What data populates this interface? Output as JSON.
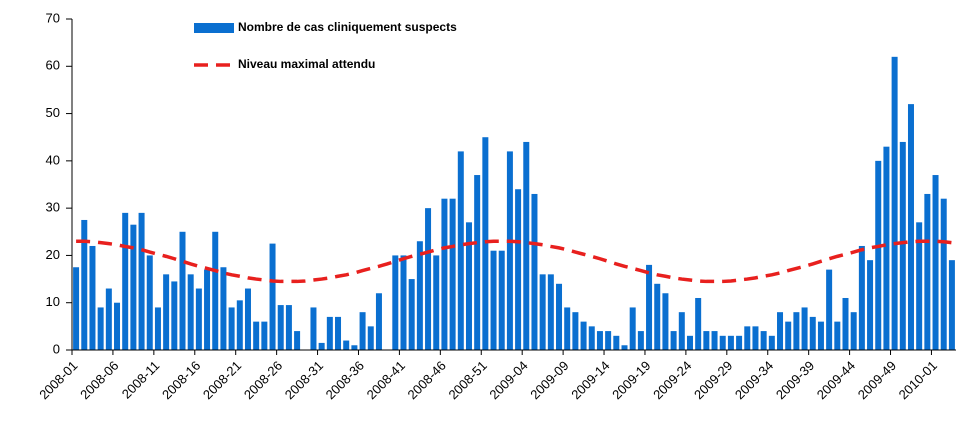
{
  "chart_data": {
    "type": "bar",
    "categories": [
      "2008-01",
      null,
      null,
      null,
      null,
      "2008-06",
      null,
      null,
      null,
      null,
      "2008-11",
      null,
      null,
      null,
      null,
      "2008-16",
      null,
      null,
      null,
      null,
      "2008-21",
      null,
      null,
      null,
      null,
      "2008-26",
      null,
      null,
      null,
      null,
      "2008-31",
      null,
      null,
      null,
      null,
      "2008-36",
      null,
      null,
      null,
      null,
      "2008-41",
      null,
      null,
      null,
      null,
      "2008-46",
      null,
      null,
      null,
      null,
      "2008-51",
      null,
      null,
      null,
      null,
      "2009-04",
      null,
      null,
      null,
      null,
      "2009-09",
      null,
      null,
      null,
      null,
      "2009-14",
      null,
      null,
      null,
      null,
      "2009-19",
      null,
      null,
      null,
      null,
      "2009-24",
      null,
      null,
      null,
      null,
      "2009-29",
      null,
      null,
      null,
      null,
      "2009-34",
      null,
      null,
      null,
      null,
      "2009-39",
      null,
      null,
      null,
      null,
      "2009-44",
      null,
      null,
      null,
      null,
      "2009-49",
      null,
      null,
      null,
      null,
      "2010-01",
      null,
      null
    ],
    "series": [
      {
        "name": "Nombre de cas cliniquement suspects",
        "type": "bar",
        "color": "#0a6fd0",
        "values": [
          17.5,
          27.5,
          22,
          9,
          13,
          10,
          29,
          26.5,
          29,
          20,
          9,
          16,
          14.5,
          25,
          16,
          13,
          17,
          25,
          17.5,
          9,
          10.5,
          13,
          6,
          6,
          22.5,
          9.5,
          9.5,
          4,
          0,
          9,
          1.5,
          7,
          7,
          2,
          1,
          8,
          5,
          12,
          0,
          20,
          20,
          15,
          23,
          30,
          20,
          32,
          32,
          42,
          27,
          37,
          45,
          21,
          21,
          42,
          34,
          44,
          33,
          16,
          16,
          14,
          9,
          8,
          6,
          5,
          4,
          4,
          3,
          1,
          9,
          4,
          18,
          14,
          12,
          4,
          8,
          3,
          11,
          4,
          4,
          3,
          3,
          3,
          5,
          5,
          4,
          3,
          8,
          6,
          8,
          9,
          7,
          6,
          17,
          6,
          11,
          8,
          22,
          19,
          40,
          43,
          62,
          44,
          52,
          27,
          33,
          37,
          32,
          19
        ]
      },
      {
        "name": "Niveau maximal attendu",
        "type": "line",
        "color": "#e8201e",
        "values": [
          23,
          23,
          22.9,
          22.7,
          22.5,
          22.25,
          21.9,
          21.6,
          21.2,
          20.7,
          20.25,
          19.8,
          19.3,
          18.75,
          18.2,
          17.7,
          17.25,
          16.8,
          16.3,
          15.9,
          15.6,
          15.25,
          15,
          14.8,
          14.6,
          14.5,
          14.5,
          14.5,
          14.6,
          14.8,
          15,
          15.25,
          15.6,
          15.9,
          16.3,
          16.8,
          17.25,
          17.7,
          18.2,
          18.75,
          19.3,
          19.8,
          20.25,
          20.7,
          21.2,
          21.6,
          21.9,
          22.25,
          22.5,
          22.7,
          22.9,
          23,
          23,
          23,
          22.9,
          22.7,
          22.5,
          22.25,
          21.9,
          21.6,
          21.2,
          20.7,
          20.25,
          19.8,
          19.3,
          18.75,
          18.2,
          17.7,
          17.25,
          16.8,
          16.3,
          15.9,
          15.6,
          15.25,
          15,
          14.8,
          14.6,
          14.5,
          14.5,
          14.5,
          14.6,
          14.8,
          15,
          15.25,
          15.6,
          15.9,
          16.3,
          16.8,
          17.25,
          17.7,
          18.2,
          18.75,
          19.3,
          19.8,
          20.25,
          20.7,
          21.2,
          21.6,
          21.9,
          22.25,
          22.5,
          22.7,
          22.9,
          23,
          23,
          23,
          22.9,
          22.7
        ]
      }
    ],
    "ylim": [
      0,
      70
    ],
    "yticks": [
      0,
      10,
      20,
      30,
      40,
      50,
      60,
      70
    ],
    "grid": false
  }
}
